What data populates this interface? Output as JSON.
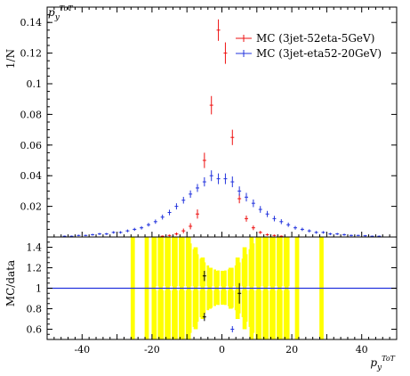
{
  "chart_data": [
    {
      "type": "scatter",
      "title": "",
      "ylabel": "1/N",
      "xlabel": "",
      "corner_label": "p_y^ToT",
      "xlim": [
        -50,
        50
      ],
      "ylim": [
        0,
        0.15
      ],
      "yticks": [
        0.02,
        0.04,
        0.06,
        0.08,
        0.1,
        0.12,
        0.14
      ],
      "ytick_labels": [
        "0.02",
        "0.04",
        "0.06",
        "0.08",
        "0.1",
        "0.12",
        "0.14"
      ],
      "legend_position": "top-right",
      "series": [
        {
          "name": "MC (3jet-52eta-5GeV)",
          "color": "#ee1111",
          "x": [
            -17,
            -15,
            -13,
            -11,
            -9,
            -7,
            -5,
            -3,
            -1,
            1,
            3,
            5,
            7,
            9,
            11,
            13,
            15,
            17
          ],
          "y": [
            0.0005,
            0.001,
            0.002,
            0.004,
            0.007,
            0.015,
            0.05,
            0.086,
            0.135,
            0.12,
            0.065,
            0.025,
            0.012,
            0.006,
            0.003,
            0.0015,
            0.001,
            0.0005
          ],
          "err": [
            0.0005,
            0.0006,
            0.001,
            0.0015,
            0.002,
            0.003,
            0.005,
            0.006,
            0.007,
            0.007,
            0.005,
            0.003,
            0.002,
            0.0015,
            0.001,
            0.0008,
            0.0006,
            0.0005
          ]
        },
        {
          "name": "MC (3jet-eta52-20GeV)",
          "color": "#2233dd",
          "x": [
            -45,
            -43,
            -41,
            -39,
            -37,
            -35,
            -33,
            -31,
            -29,
            -27,
            -25,
            -23,
            -21,
            -19,
            -17,
            -15,
            -13,
            -11,
            -9,
            -7,
            -5,
            -3,
            -1,
            1,
            3,
            5,
            7,
            9,
            11,
            13,
            15,
            17,
            19,
            21,
            23,
            25,
            27,
            29,
            31,
            33,
            35,
            37,
            39,
            41,
            43,
            45
          ],
          "y": [
            0.0005,
            0.0005,
            0.001,
            0.001,
            0.0015,
            0.002,
            0.002,
            0.003,
            0.003,
            0.004,
            0.005,
            0.006,
            0.008,
            0.01,
            0.013,
            0.016,
            0.02,
            0.024,
            0.028,
            0.032,
            0.036,
            0.04,
            0.038,
            0.038,
            0.036,
            0.03,
            0.026,
            0.022,
            0.018,
            0.015,
            0.012,
            0.01,
            0.008,
            0.006,
            0.005,
            0.004,
            0.003,
            0.003,
            0.002,
            0.002,
            0.0015,
            0.001,
            0.001,
            0.0008,
            0.0005,
            0.0005
          ],
          "err": [
            0.0004,
            0.0004,
            0.0005,
            0.0005,
            0.0006,
            0.0007,
            0.0007,
            0.0008,
            0.0008,
            0.0009,
            0.001,
            0.0011,
            0.0012,
            0.0014,
            0.0016,
            0.0018,
            0.002,
            0.0022,
            0.0024,
            0.0026,
            0.003,
            0.0035,
            0.0035,
            0.0035,
            0.0035,
            0.003,
            0.0028,
            0.0025,
            0.0022,
            0.002,
            0.0018,
            0.0016,
            0.0014,
            0.0012,
            0.0011,
            0.001,
            0.0009,
            0.0008,
            0.0008,
            0.0007,
            0.0007,
            0.0006,
            0.0005,
            0.0005,
            0.0004,
            0.0004
          ]
        }
      ]
    },
    {
      "type": "scatter",
      "title": "",
      "ylabel": "MC/data",
      "xlabel": "p_y^ToT",
      "xlim": [
        -50,
        50
      ],
      "ylim": [
        0.5,
        1.5
      ],
      "xticks": [
        -40,
        -20,
        0,
        20,
        40
      ],
      "xtick_labels": [
        "-40",
        "-20",
        "0",
        "20",
        "40"
      ],
      "yticks": [
        0.6,
        0.8,
        1,
        1.2,
        1.4
      ],
      "ytick_labels": [
        "0.6",
        "0.8",
        "1",
        "1.2",
        "1.4"
      ],
      "reference_line": 1,
      "band_color": "#ffff00",
      "band": {
        "x": [
          -25.5,
          -21.5,
          -19.5,
          -17.5,
          -15.5,
          -13.5,
          -11.5,
          -9.5,
          -7.5,
          -5.5,
          -3.5,
          -1.5,
          0.5,
          2.5,
          4.5,
          6.5,
          8.5,
          10.5,
          12.5,
          14.5,
          16.5,
          18.5,
          21.5,
          28.5
        ],
        "half_width": [
          0.6,
          0.6,
          0.6,
          0.6,
          0.6,
          0.6,
          0.6,
          0.6,
          0.6,
          0.6,
          0.6,
          0.6,
          0.6,
          0.6,
          0.6,
          0.6,
          0.6,
          0.6,
          0.6,
          0.6,
          0.6,
          0.6,
          0.6,
          0.6
        ],
        "lower": [
          0.5,
          0.5,
          0.5,
          0.5,
          0.5,
          0.5,
          0.5,
          0.5,
          0.6,
          0.7,
          0.8,
          0.84,
          0.84,
          0.8,
          0.7,
          0.6,
          0.5,
          0.5,
          0.5,
          0.5,
          0.5,
          0.5,
          0.5,
          0.5
        ],
        "upper": [
          1.5,
          1.5,
          1.5,
          1.5,
          1.5,
          1.5,
          1.5,
          1.5,
          1.4,
          1.3,
          1.2,
          1.17,
          1.17,
          1.2,
          1.3,
          1.4,
          1.5,
          1.5,
          1.5,
          1.5,
          1.5,
          1.5,
          1.5,
          1.5
        ]
      },
      "series": [
        {
          "name": "MC (3jet-52eta-5GeV)",
          "color": "#000000",
          "x": [
            -5,
            -5,
            5
          ],
          "y": [
            1.12,
            0.72,
            0.95
          ],
          "err": [
            0.05,
            0.04,
            0.1
          ]
        },
        {
          "name": "MC (3jet-eta52-20GeV)",
          "color": "#2233dd",
          "x": [
            3
          ],
          "y": [
            0.6
          ],
          "err": [
            0.03
          ]
        }
      ]
    }
  ]
}
